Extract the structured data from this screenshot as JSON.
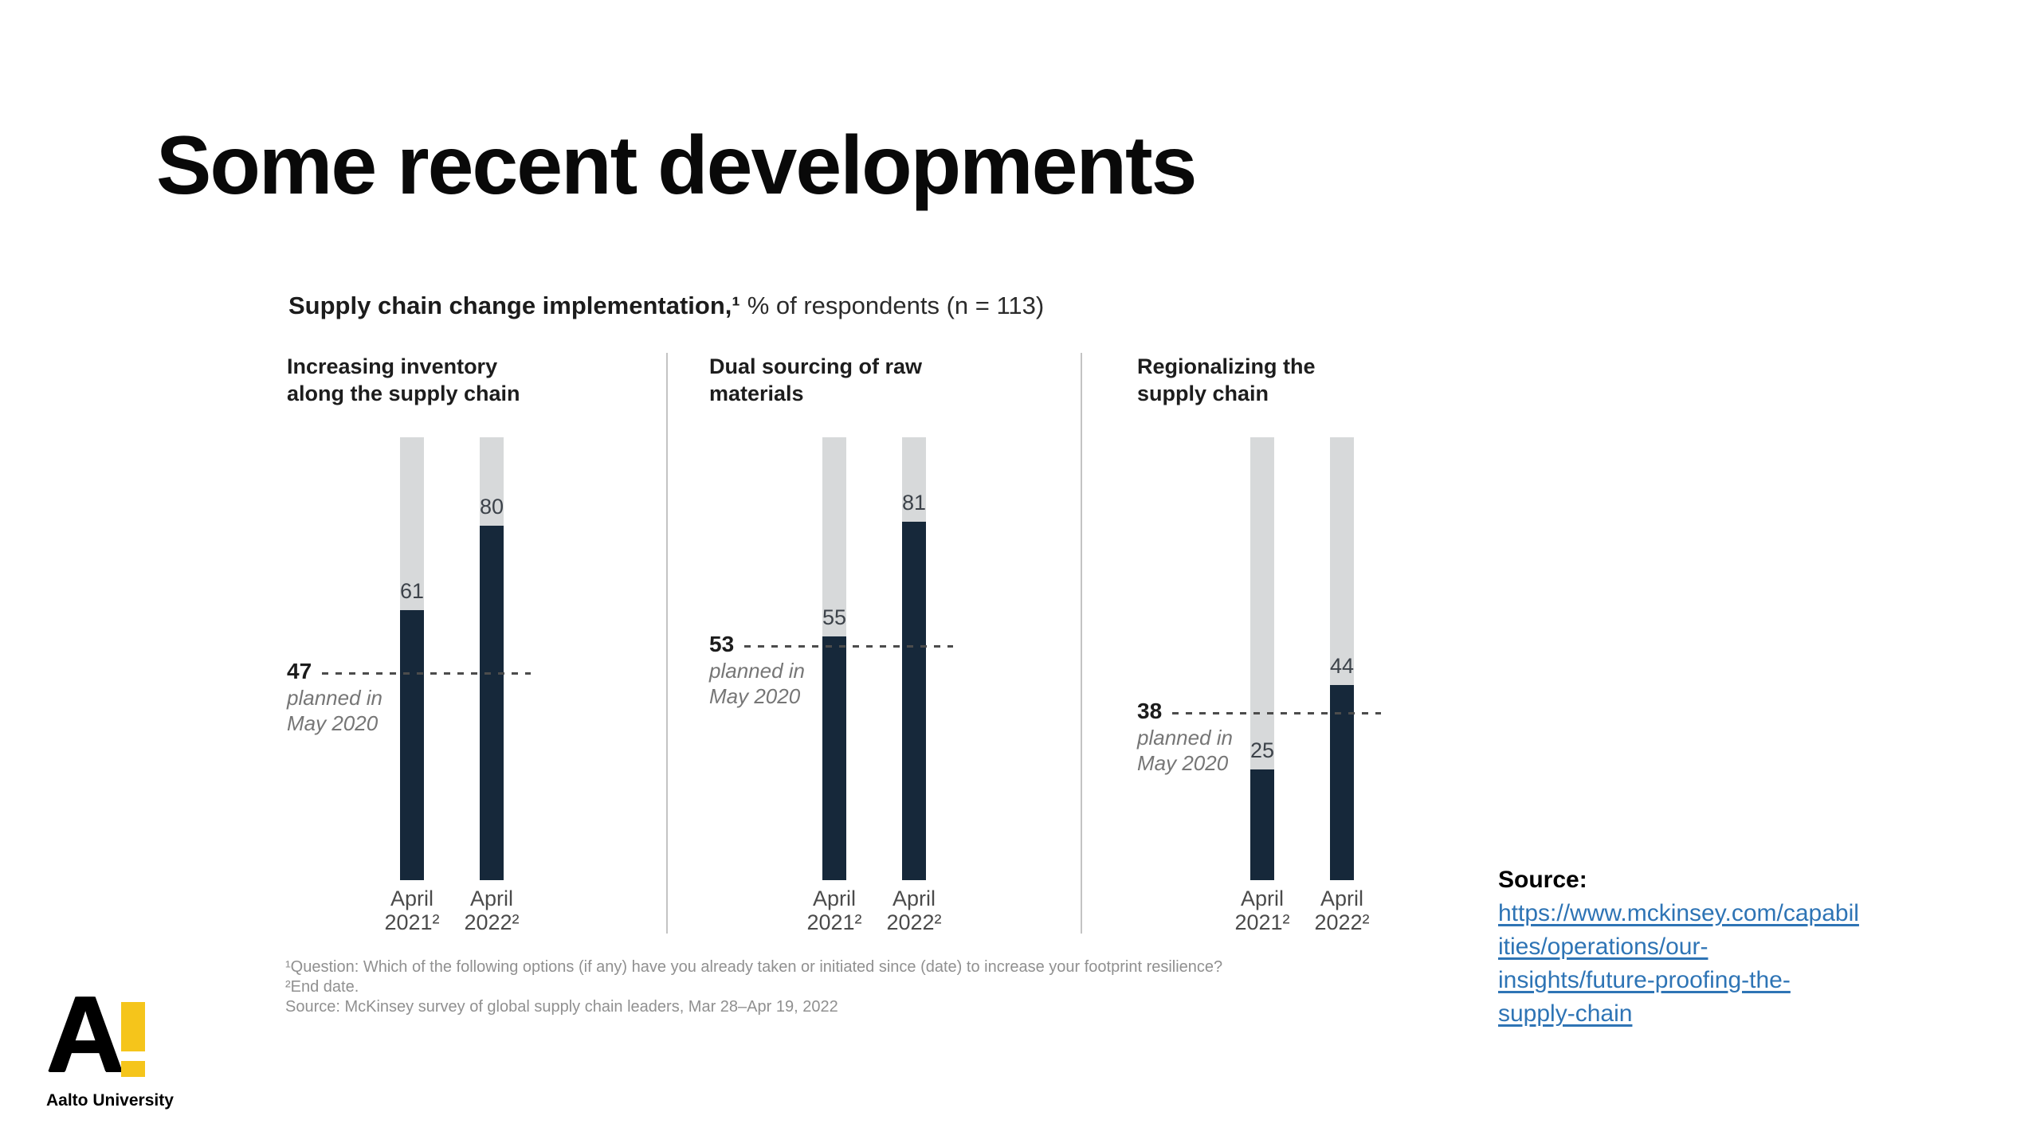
{
  "slide": {
    "title": "Some recent developments"
  },
  "chart_data": {
    "type": "bar",
    "title_bold": "Supply chain change implementation,¹",
    "title_regular": "% of respondents (n = 113)",
    "ylim": [
      0,
      100
    ],
    "bar_full_color": "#d7d9da",
    "bar_fill_color": "#16283a",
    "x_labels": [
      "April\n2021²",
      "April\n2022²"
    ],
    "panels": [
      {
        "header": "Increasing inventory\nalong the supply chain",
        "values": [
          61,
          80
        ],
        "planned": 47,
        "planned_caption": "planned in\nMay 2020"
      },
      {
        "header": "Dual sourcing of raw\nmaterials",
        "values": [
          55,
          81
        ],
        "planned": 53,
        "planned_caption": "planned in\nMay 2020"
      },
      {
        "header": "Regionalizing the\nsupply chain",
        "values": [
          25,
          44
        ],
        "planned": 38,
        "planned_caption": "planned in\nMay 2020"
      }
    ]
  },
  "footnotes": {
    "line1": "¹Question: Which of the following options (if any) have you already taken or initiated since (date) to increase your footprint resilience?",
    "line2": "²End date.",
    "line3": "Source: McKinsey survey of global supply chain leaders, Mar 28–Apr 19, 2022"
  },
  "source": {
    "label": "Source:",
    "link_lines": [
      "https://www.mckinsey.com/capabil",
      "ities/operations/our-",
      "insights/future-proofing-the-",
      "supply-chain"
    ],
    "link_color": "#2e74b5"
  },
  "logo": {
    "letter": "A",
    "wordmark": "Aalto University",
    "accent_color": "#f5c51b"
  }
}
